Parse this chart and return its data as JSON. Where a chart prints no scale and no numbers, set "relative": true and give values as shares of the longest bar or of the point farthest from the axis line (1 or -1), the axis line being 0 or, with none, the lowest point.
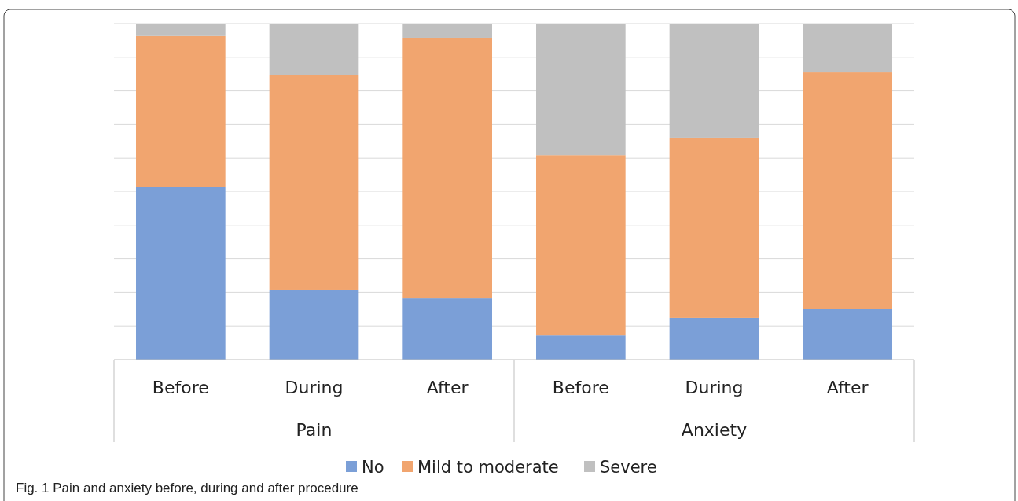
{
  "chart_data": {
    "type": "bar",
    "stacked": true,
    "relative": true,
    "grid": true,
    "legend": "bottom",
    "title": "Fig. 1  Pain and anxiety before, during and after procedure",
    "categories": [
      "Before",
      "During",
      "After",
      "Before",
      "During",
      "After"
    ],
    "annotations": [
      "Pain",
      "Anxiety"
    ],
    "series": [
      {
        "name": "No",
        "color": "#7b9fd7",
        "values": [
          0.514,
          0.208,
          0.182,
          0.072,
          0.124,
          0.15
        ]
      },
      {
        "name": "Mild to moderate",
        "color": "#f1a56f",
        "values": [
          0.449,
          0.64,
          0.776,
          0.535,
          0.535,
          0.705
        ]
      },
      {
        "name": "Severe",
        "color": "#c0c0c0",
        "values": [
          0.037,
          0.152,
          0.042,
          0.393,
          0.341,
          0.145
        ]
      }
    ]
  }
}
